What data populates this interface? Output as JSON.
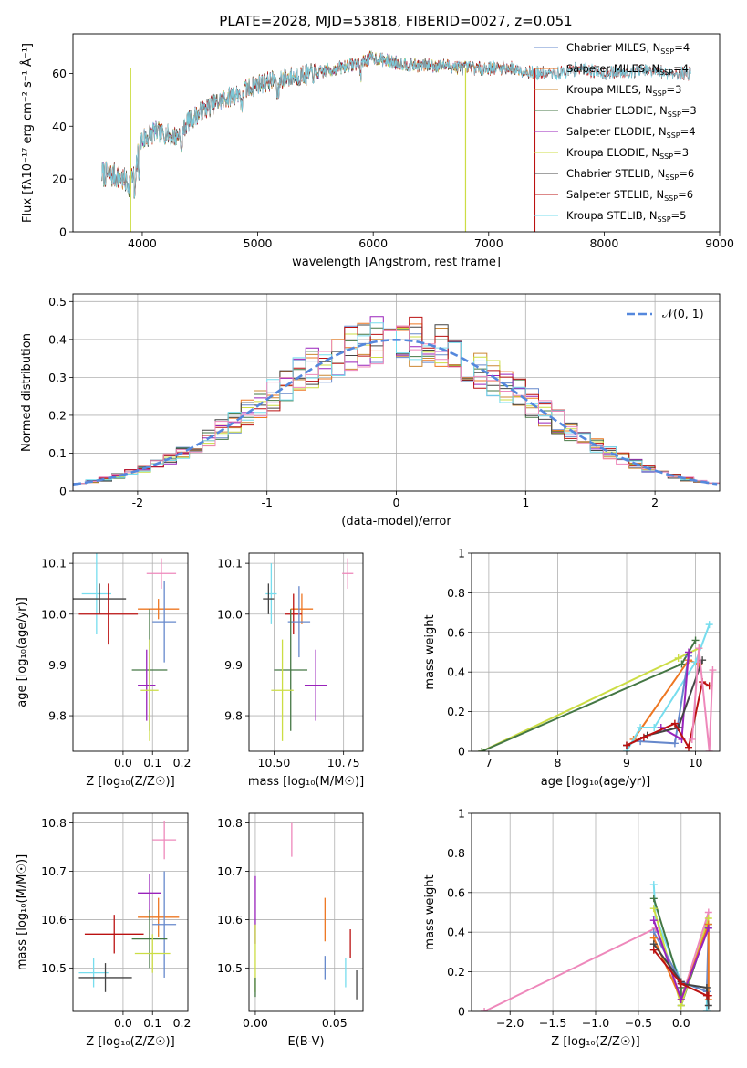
{
  "figure_title": "PLATE=2028, MJD=53818, FIBERID=0027, z=0.051",
  "colors": {
    "chabrier_miles": "#6688cc",
    "salpeter_miles": "#ee7722",
    "kroupa_miles": "#cc8833",
    "chabrier_elodie": "#447744",
    "salpeter_elodie": "#9922bb",
    "kroupa_elodie": "#ccdd44",
    "chabrier_stelib": "#444444",
    "salpeter_stelib": "#bb1111",
    "kroupa_stelib": "#77ddee",
    "pink": "#ee88bb",
    "normal_curve": "#5588dd"
  },
  "chart_data": [
    {
      "id": "spectrum",
      "type": "line",
      "title": "PLATE=2028, MJD=53818, FIBERID=0027, z=0.051",
      "xlabel": "wavelength [Angstrom, rest frame]",
      "ylabel": "Flux [fλ10⁻¹⁷ erg cm⁻² s⁻¹ Å⁻¹]",
      "xlim": [
        3400,
        9000
      ],
      "ylim": [
        0,
        75
      ],
      "xticks": [
        4000,
        5000,
        6000,
        7000,
        8000,
        9000
      ],
      "yticks": [
        0,
        20,
        40,
        60
      ],
      "grid": false,
      "legend_position": "right",
      "legend": [
        {
          "label": "Chabrier MILES, N_SSP=4",
          "color_key": "chabrier_miles",
          "end": 7400
        },
        {
          "label": "Salpeter MILES, N_SSP=4",
          "color_key": "salpeter_miles",
          "end": 7400
        },
        {
          "label": "Kroupa MILES, N_SSP=3",
          "color_key": "kroupa_miles",
          "end": 7400
        },
        {
          "label": "Chabrier ELODIE, N_SSP=3",
          "color_key": "chabrier_elodie",
          "end": 6800
        },
        {
          "label": "Salpeter ELODIE, N_SSP=4",
          "color_key": "salpeter_elodie",
          "end": 6800
        },
        {
          "label": "Kroupa ELODIE, N_SSP=3",
          "color_key": "kroupa_elodie",
          "end": 6800
        },
        {
          "label": "Chabrier STELIB, N_SSP=6",
          "color_key": "chabrier_stelib",
          "end": 8750
        },
        {
          "label": "Salpeter STELIB, N_SSP=6",
          "color_key": "salpeter_stelib",
          "end": 8750
        },
        {
          "label": "Kroupa STELIB, N_SSP=5",
          "color_key": "kroupa_stelib",
          "end": 8750
        }
      ],
      "continuum": [
        [
          3650,
          22
        ],
        [
          3800,
          21
        ],
        [
          3880,
          18
        ],
        [
          3940,
          22
        ],
        [
          3980,
          34
        ],
        [
          4100,
          38
        ],
        [
          4300,
          36
        ],
        [
          4400,
          42
        ],
        [
          4600,
          48
        ],
        [
          4800,
          52
        ],
        [
          5000,
          56
        ],
        [
          5200,
          58
        ],
        [
          5500,
          60
        ],
        [
          5800,
          63
        ],
        [
          6000,
          66
        ],
        [
          6200,
          64
        ],
        [
          6400,
          63
        ],
        [
          6600,
          63
        ],
        [
          6800,
          62
        ],
        [
          7000,
          62
        ],
        [
          7200,
          62
        ],
        [
          7400,
          60
        ],
        [
          7600,
          60
        ],
        [
          7800,
          62
        ],
        [
          8000,
          60
        ],
        [
          8300,
          61
        ],
        [
          8600,
          60
        ],
        [
          8750,
          60
        ]
      ]
    },
    {
      "id": "residuals",
      "type": "histogram",
      "xlabel": "(data-model)/error",
      "ylabel": "Normed distribution",
      "xlim": [
        -2.5,
        2.5
      ],
      "ylim": [
        0,
        0.52
      ],
      "xticks": [
        -2,
        -1,
        0,
        1,
        2
      ],
      "yticks": [
        0.0,
        0.1,
        0.2,
        0.3,
        0.4,
        0.5
      ],
      "grid": true,
      "legend_position": "top-right",
      "legend": [
        {
          "label": "𝒩(0, 1)",
          "color_key": "normal_curve"
        }
      ],
      "bin_width": 0.1
    },
    {
      "id": "age_vs_Z",
      "type": "errorbar",
      "xlabel": "Z [log₁₀(Z/Z☉)]",
      "ylabel": "age  [log₁₀(age/yr)]",
      "xlim": [
        -0.17,
        0.22
      ],
      "ylim": [
        9.73,
        10.12
      ],
      "xticks": [
        0.0,
        0.1,
        0.2
      ],
      "xticklabels": [
        "0.0",
        "0.1",
        "0.2"
      ],
      "yticks": [
        9.8,
        9.9,
        10.0,
        10.1
      ],
      "yticklabels": [
        "9.8",
        "9.9",
        "10.0",
        "10.1"
      ],
      "grid": true,
      "points": [
        {
          "color_key": "kroupa_stelib",
          "x": -0.09,
          "xerr": 0.05,
          "y": 10.04,
          "yerr": 0.08
        },
        {
          "color_key": "pink",
          "x": 0.13,
          "xerr": 0.05,
          "y": 10.08,
          "yerr": 0.03
        },
        {
          "color_key": "chabrier_stelib",
          "x": -0.08,
          "xerr": 0.09,
          "y": 10.03,
          "yerr": 0.03
        },
        {
          "color_key": "salpeter_miles",
          "x": 0.12,
          "xerr": 0.07,
          "y": 10.01,
          "yerr": 0.02
        },
        {
          "color_key": "salpeter_stelib",
          "x": -0.05,
          "xerr": 0.1,
          "y": 10.0,
          "yerr": 0.06
        },
        {
          "color_key": "chabrier_miles",
          "x": 0.14,
          "xerr": 0.04,
          "y": 9.985,
          "yerr": 0.08
        },
        {
          "color_key": "chabrier_elodie",
          "x": 0.09,
          "xerr": 0.06,
          "y": 9.89,
          "yerr": 0.12
        },
        {
          "color_key": "salpeter_elodie",
          "x": 0.08,
          "xerr": 0.03,
          "y": 9.86,
          "yerr": 0.07
        },
        {
          "color_key": "kroupa_elodie",
          "x": 0.09,
          "xerr": 0.03,
          "y": 9.85,
          "yerr": 0.1
        }
      ]
    },
    {
      "id": "age_vs_mass",
      "type": "errorbar",
      "xlabel": "mass [log₁₀(M/M☉)]",
      "ylabel": "",
      "xlim": [
        10.41,
        10.82
      ],
      "ylim": [
        9.73,
        10.12
      ],
      "xticks": [
        10.5,
        10.75
      ],
      "xticklabels": [
        "10.50",
        "10.75"
      ],
      "yticks": [
        9.8,
        9.9,
        10.0,
        10.1
      ],
      "yticklabels": [
        "9.8",
        "9.9",
        "10.0",
        "10.1"
      ],
      "grid": true,
      "points": [
        {
          "color_key": "kroupa_stelib",
          "x": 10.49,
          "xerr": 0.02,
          "y": 10.04,
          "yerr": 0.06
        },
        {
          "color_key": "pink",
          "x": 10.765,
          "xerr": 0.02,
          "y": 10.08,
          "yerr": 0.03
        },
        {
          "color_key": "chabrier_stelib",
          "x": 10.48,
          "xerr": 0.02,
          "y": 10.03,
          "yerr": 0.03
        },
        {
          "color_key": "salpeter_miles",
          "x": 10.6,
          "xerr": 0.04,
          "y": 10.01,
          "yerr": 0.03
        },
        {
          "color_key": "salpeter_stelib",
          "x": 10.57,
          "xerr": 0.03,
          "y": 10.0,
          "yerr": 0.04
        },
        {
          "color_key": "chabrier_miles",
          "x": 10.59,
          "xerr": 0.04,
          "y": 9.985,
          "yerr": 0.07
        },
        {
          "color_key": "chabrier_elodie",
          "x": 10.56,
          "xerr": 0.06,
          "y": 9.89,
          "yerr": 0.12
        },
        {
          "color_key": "salpeter_elodie",
          "x": 10.65,
          "xerr": 0.04,
          "y": 9.86,
          "yerr": 0.07
        },
        {
          "color_key": "kroupa_elodie",
          "x": 10.53,
          "xerr": 0.04,
          "y": 9.85,
          "yerr": 0.1
        }
      ]
    },
    {
      "id": "massweight_vs_age",
      "type": "line",
      "xlabel": "age  [log₁₀(age/yr)]",
      "ylabel": "mass weight",
      "xlim": [
        6.75,
        10.35
      ],
      "ylim": [
        0,
        1
      ],
      "xticks": [
        7,
        8,
        9,
        10
      ],
      "yticks": [
        0.0,
        0.2,
        0.4,
        0.6,
        0.8,
        1.0
      ],
      "grid": true,
      "series": [
        {
          "color_key": "kroupa_elodie",
          "points": [
            [
              6.9,
              0.0
            ],
            [
              9.75,
              0.47
            ],
            [
              10.05,
              0.52
            ]
          ]
        },
        {
          "color_key": "chabrier_elodie",
          "points": [
            [
              6.9,
              0.0
            ],
            [
              9.8,
              0.44
            ],
            [
              10.0,
              0.56
            ]
          ]
        },
        {
          "color_key": "salpeter_miles",
          "points": [
            [
              9.1,
              0.06
            ],
            [
              9.9,
              0.46
            ],
            [
              10.05,
              0.44
            ]
          ]
        },
        {
          "color_key": "kroupa_stelib",
          "points": [
            [
              9.0,
              0.0
            ],
            [
              9.2,
              0.12
            ],
            [
              9.4,
              0.12
            ],
            [
              10.0,
              0.45
            ],
            [
              10.2,
              0.64
            ]
          ]
        },
        {
          "color_key": "chabrier_miles",
          "points": [
            [
              9.2,
              0.05
            ],
            [
              9.7,
              0.04
            ],
            [
              9.9,
              0.48
            ]
          ]
        },
        {
          "color_key": "salpeter_elodie",
          "points": [
            [
              9.5,
              0.12
            ],
            [
              9.8,
              0.06
            ],
            [
              9.9,
              0.5
            ]
          ]
        },
        {
          "color_key": "chabrier_stelib",
          "points": [
            [
              9.0,
              0.03
            ],
            [
              9.3,
              0.08
            ],
            [
              9.75,
              0.12
            ],
            [
              10.1,
              0.46
            ]
          ]
        },
        {
          "color_key": "salpeter_stelib",
          "points": [
            [
              9.0,
              0.03
            ],
            [
              9.25,
              0.07
            ],
            [
              9.7,
              0.14
            ],
            [
              9.9,
              0.02
            ],
            [
              10.1,
              0.35
            ],
            [
              10.2,
              0.33
            ]
          ]
        },
        {
          "color_key": "pink",
          "points": [
            [
              9.95,
              0.06
            ],
            [
              10.05,
              0.52
            ],
            [
              10.2,
              0.0
            ],
            [
              10.25,
              0.41
            ]
          ]
        }
      ]
    },
    {
      "id": "mass_vs_Z",
      "type": "errorbar",
      "xlabel": "Z [log₁₀(Z/Z☉)]",
      "ylabel": "mass [log₁₀(M/M☉)]",
      "xlim": [
        -0.17,
        0.22
      ],
      "ylim": [
        10.41,
        10.82
      ],
      "xticks": [
        0.0,
        0.1,
        0.2
      ],
      "xticklabels": [
        "0.0",
        "0.1",
        "0.2"
      ],
      "yticks": [
        10.5,
        10.6,
        10.7,
        10.8
      ],
      "yticklabels": [
        "10.5",
        "10.6",
        "10.7",
        "10.8"
      ],
      "grid": true,
      "points": [
        {
          "color_key": "pink",
          "x": 0.14,
          "xerr": 0.04,
          "y": 10.765,
          "yerr": 0.04
        },
        {
          "color_key": "salpeter_elodie",
          "x": 0.09,
          "xerr": 0.04,
          "y": 10.655,
          "yerr": 0.04
        },
        {
          "color_key": "salpeter_miles",
          "x": 0.12,
          "xerr": 0.07,
          "y": 10.605,
          "yerr": 0.04
        },
        {
          "color_key": "chabrier_miles",
          "x": 0.14,
          "xerr": 0.04,
          "y": 10.59,
          "yerr": 0.11
        },
        {
          "color_key": "salpeter_stelib",
          "x": -0.03,
          "xerr": 0.1,
          "y": 10.57,
          "yerr": 0.04
        },
        {
          "color_key": "chabrier_elodie",
          "x": 0.09,
          "xerr": 0.06,
          "y": 10.56,
          "yerr": 0.06
        },
        {
          "color_key": "kroupa_elodie",
          "x": 0.1,
          "xerr": 0.06,
          "y": 10.53,
          "yerr": 0.04
        },
        {
          "color_key": "kroupa_stelib",
          "x": -0.1,
          "xerr": 0.05,
          "y": 10.49,
          "yerr": 0.03
        },
        {
          "color_key": "chabrier_stelib",
          "x": -0.06,
          "xerr": 0.09,
          "y": 10.48,
          "yerr": 0.03
        }
      ]
    },
    {
      "id": "mass_vs_ebv",
      "type": "errorbar",
      "xlabel": "E(B-V)",
      "ylabel": "",
      "xlim": [
        -0.004,
        0.068
      ],
      "ylim": [
        10.41,
        10.82
      ],
      "xticks": [
        0.0,
        0.05
      ],
      "xticklabels": [
        "0.00",
        "0.05"
      ],
      "yticks": [
        10.5,
        10.6,
        10.7,
        10.8
      ],
      "yticklabels": [
        "10.5",
        "10.6",
        "10.7",
        "10.8"
      ],
      "grid": true,
      "points": [
        {
          "color_key": "pink",
          "x": 0.023,
          "xerr": 0,
          "y": 10.765,
          "yerr": 0.035
        },
        {
          "color_key": "salpeter_elodie",
          "x": 0.0,
          "xerr": 0,
          "y": 10.62,
          "yerr": 0.07
        },
        {
          "color_key": "kroupa_elodie",
          "x": 0.0,
          "xerr": 0,
          "y": 10.52,
          "yerr": 0.07
        },
        {
          "color_key": "salpeter_miles",
          "x": 0.044,
          "xerr": 0,
          "y": 10.6,
          "yerr": 0.045
        },
        {
          "color_key": "chabrier_miles",
          "x": 0.044,
          "xerr": 0,
          "y": 10.5,
          "yerr": 0.025
        },
        {
          "color_key": "salpeter_stelib",
          "x": 0.06,
          "xerr": 0,
          "y": 10.55,
          "yerr": 0.03
        },
        {
          "color_key": "kroupa_stelib",
          "x": 0.057,
          "xerr": 0,
          "y": 10.49,
          "yerr": 0.03
        },
        {
          "color_key": "chabrier_stelib",
          "x": 0.064,
          "xerr": 0,
          "y": 10.465,
          "yerr": 0.03
        },
        {
          "color_key": "chabrier_elodie",
          "x": 0.0,
          "xerr": 0,
          "y": 10.46,
          "yerr": 0.02
        }
      ]
    },
    {
      "id": "massweight_vs_Z",
      "type": "line",
      "xlabel": "Z [log₁₀(Z/Z☉)]",
      "ylabel": "mass weight",
      "xlim": [
        -2.45,
        0.45
      ],
      "ylim": [
        0,
        1
      ],
      "xticks": [
        -2.0,
        -1.5,
        -1.0,
        -0.5,
        0.0
      ],
      "xticklabels": [
        "−2.0",
        "−1.5",
        "−1.0",
        "−0.5",
        "0.0"
      ],
      "yticks": [
        0.0,
        0.2,
        0.4,
        0.6,
        0.8,
        1.0
      ],
      "grid": true,
      "series": [
        {
          "color_key": "pink",
          "points": [
            [
              -2.3,
              0.0
            ],
            [
              -0.3,
              0.42
            ],
            [
              0.0,
              0.12
            ],
            [
              0.0,
              0.06
            ],
            [
              0.32,
              0.5
            ]
          ]
        },
        {
          "color_key": "kroupa_stelib",
          "points": [
            [
              -0.32,
              0.64
            ],
            [
              -0.3,
              0.48
            ],
            [
              0.0,
              0.15
            ],
            [
              0.3,
              0.1
            ],
            [
              0.3,
              0.0
            ]
          ]
        },
        {
          "color_key": "chabrier_elodie",
          "points": [
            [
              -0.32,
              0.57
            ],
            [
              0.0,
              0.12
            ],
            [
              0.0,
              0.03
            ],
            [
              0.32,
              0.44
            ]
          ]
        },
        {
          "color_key": "kroupa_elodie",
          "points": [
            [
              -0.32,
              0.52
            ],
            [
              0.0,
              0.03
            ],
            [
              0.32,
              0.47
            ]
          ]
        },
        {
          "color_key": "chabrier_miles",
          "points": [
            [
              -0.32,
              0.4
            ],
            [
              0.0,
              0.15
            ],
            [
              0.3,
              0.1
            ],
            [
              0.32,
              0.42
            ]
          ]
        },
        {
          "color_key": "salpeter_miles",
          "points": [
            [
              -0.32,
              0.37
            ],
            [
              0.0,
              0.06
            ],
            [
              0.32,
              0.44
            ],
            [
              0.32,
              0.06
            ]
          ]
        },
        {
          "color_key": "salpeter_elodie",
          "points": [
            [
              -0.32,
              0.46
            ],
            [
              0.0,
              0.06
            ],
            [
              0.32,
              0.42
            ]
          ]
        },
        {
          "color_key": "chabrier_stelib",
          "points": [
            [
              -0.32,
              0.34
            ],
            [
              0.0,
              0.15
            ],
            [
              0.0,
              0.14
            ],
            [
              0.3,
              0.12
            ],
            [
              0.32,
              0.03
            ]
          ]
        },
        {
          "color_key": "salpeter_stelib",
          "points": [
            [
              -0.32,
              0.31
            ],
            [
              0.0,
              0.14
            ],
            [
              0.3,
              0.08
            ],
            [
              0.32,
              0.08
            ]
          ]
        }
      ]
    }
  ]
}
